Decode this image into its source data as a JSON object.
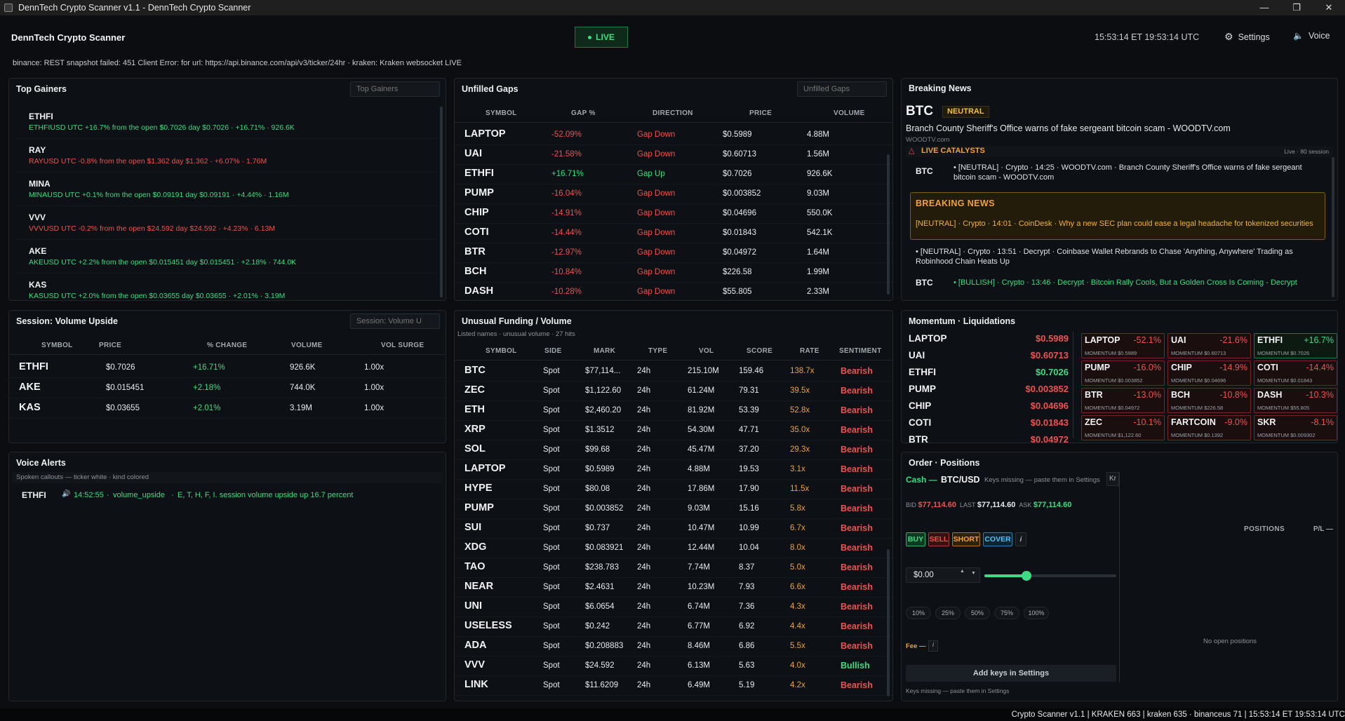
{
  "window": {
    "title": "DennTech Crypto Scanner v1.1 - DennTech Crypto Scanner"
  },
  "header": {
    "app_title": "DennTech Crypto Scanner",
    "live_label": "LIVE",
    "clock": "15:53:14 ET   19:53:14 UTC",
    "settings_label": "Settings",
    "voice_label": "Voice",
    "status_line": "binance: REST snapshot failed: 451 Client Error:  for url: https://api.binance.com/api/v3/ticker/24hr · kraken: Kraken websocket LIVE"
  },
  "top_gainers": {
    "title": "Top Gainers",
    "filter_placeholder": "Top Gainers",
    "items": [
      {
        "symbol": "ETHFI",
        "detail": "ETHFIUSD   UTC +16.7% from the open  $0.7026   day  $0.7026  ·  +16.71%  ·  926.6K",
        "color": "green"
      },
      {
        "symbol": "RAY",
        "detail": "RAYUSD   UTC -0.8% from the open  $1.362   day  $1.362  ·  +6.07%  ·  1.76M",
        "color": "red"
      },
      {
        "symbol": "MINA",
        "detail": "MINAUSD   UTC +0.1% from the open  $0.09191   day  $0.09191  ·  +4.44%  ·  1.16M",
        "color": "green"
      },
      {
        "symbol": "VVV",
        "detail": "VVVUSD   UTC -0.2% from the open  $24.592   day  $24.592  ·  +4.23%  ·  6.13M",
        "color": "red"
      },
      {
        "symbol": "AKE",
        "detail": "AKEUSD   UTC +2.2% from the open  $0.015451   day  $0.015451  ·  +2.18%  ·  744.0K",
        "color": "green"
      },
      {
        "symbol": "KAS",
        "detail": "KASUSD   UTC +2.0% from the open  $0.03655   day  $0.03655  ·  +2.01%  ·  3.19M",
        "color": "green"
      }
    ]
  },
  "session_volume": {
    "title": "Session: Volume Upside",
    "filter_placeholder": "Session: Volume U",
    "headers": [
      "SYMBOL",
      "PRICE",
      "% CHANGE",
      "VOLUME",
      "VOL SURGE"
    ],
    "rows": [
      {
        "symbol": "ETHFI",
        "price": "$0.7026",
        "change": "+16.71%",
        "volume": "926.6K",
        "surge": "1.00x"
      },
      {
        "symbol": "AKE",
        "price": "$0.015451",
        "change": "+2.18%",
        "volume": "744.0K",
        "surge": "1.00x"
      },
      {
        "symbol": "KAS",
        "price": "$0.03655",
        "change": "+2.01%",
        "volume": "3.19M",
        "surge": "1.00x"
      }
    ]
  },
  "voice_alerts": {
    "title": "Voice Alerts",
    "subtitle": "Spoken callouts — ticker white · kind colored",
    "items": [
      {
        "symbol": "ETHFI",
        "time": "14:52:55",
        "kind": "volume_upside",
        "text": "E, T, H, F, I. session volume upside up 16.7 percent"
      }
    ]
  },
  "unfilled_gaps": {
    "title": "Unfilled Gaps",
    "filter_placeholder": "Unfilled Gaps",
    "headers": [
      "SYMBOL",
      "GAP %",
      "DIRECTION",
      "PRICE",
      "VOLUME"
    ],
    "rows": [
      {
        "symbol": "LAPTOP",
        "gap": "-52.09%",
        "direction": "Gap Down",
        "price": "$0.5989",
        "volume": "4.88M",
        "up": false
      },
      {
        "symbol": "UAI",
        "gap": "-21.58%",
        "direction": "Gap Down",
        "price": "$0.60713",
        "volume": "1.56M",
        "up": false
      },
      {
        "symbol": "ETHFI",
        "gap": "+16.71%",
        "direction": "Gap Up",
        "price": "$0.7026",
        "volume": "926.6K",
        "up": true
      },
      {
        "symbol": "PUMP",
        "gap": "-16.04%",
        "direction": "Gap Down",
        "price": "$0.003852",
        "volume": "9.03M",
        "up": false
      },
      {
        "symbol": "CHIP",
        "gap": "-14.91%",
        "direction": "Gap Down",
        "price": "$0.04696",
        "volume": "550.0K",
        "up": false
      },
      {
        "symbol": "COTI",
        "gap": "-14.44%",
        "direction": "Gap Down",
        "price": "$0.01843",
        "volume": "542.1K",
        "up": false
      },
      {
        "symbol": "BTR",
        "gap": "-12.97%",
        "direction": "Gap Down",
        "price": "$0.04972",
        "volume": "1.64M",
        "up": false
      },
      {
        "symbol": "BCH",
        "gap": "-10.84%",
        "direction": "Gap Down",
        "price": "$226.58",
        "volume": "1.99M",
        "up": false
      },
      {
        "symbol": "DASH",
        "gap": "-10.28%",
        "direction": "Gap Down",
        "price": "$55.805",
        "volume": "2.33M",
        "up": false
      }
    ]
  },
  "unusual_funding": {
    "title": "Unusual Funding / Volume",
    "subtitle": "Listed names · unusual volume · 27 hits",
    "headers": [
      "SYMBOL",
      "SIDE",
      "MARK",
      "TYPE",
      "VOL",
      "SCORE",
      "RATE",
      "SENTIMENT"
    ],
    "rows": [
      {
        "symbol": "BTC",
        "side": "Spot",
        "mark": "$77,114...",
        "type": "24h",
        "vol": "215.10M",
        "score": "159.46",
        "rate": "138.7x",
        "sentiment": "Bearish"
      },
      {
        "symbol": "ZEC",
        "side": "Spot",
        "mark": "$1,122.60",
        "type": "24h",
        "vol": "61.24M",
        "score": "79.31",
        "rate": "39.5x",
        "sentiment": "Bearish"
      },
      {
        "symbol": "ETH",
        "side": "Spot",
        "mark": "$2,460.20",
        "type": "24h",
        "vol": "81.92M",
        "score": "53.39",
        "rate": "52.8x",
        "sentiment": "Bearish"
      },
      {
        "symbol": "XRP",
        "side": "Spot",
        "mark": "$1.3512",
        "type": "24h",
        "vol": "54.30M",
        "score": "47.71",
        "rate": "35.0x",
        "sentiment": "Bearish"
      },
      {
        "symbol": "SOL",
        "side": "Spot",
        "mark": "$99.68",
        "type": "24h",
        "vol": "45.47M",
        "score": "37.20",
        "rate": "29.3x",
        "sentiment": "Bearish"
      },
      {
        "symbol": "LAPTOP",
        "side": "Spot",
        "mark": "$0.5989",
        "type": "24h",
        "vol": "4.88M",
        "score": "19.53",
        "rate": "3.1x",
        "sentiment": "Bearish"
      },
      {
        "symbol": "HYPE",
        "side": "Spot",
        "mark": "$80.08",
        "type": "24h",
        "vol": "17.86M",
        "score": "17.90",
        "rate": "11.5x",
        "sentiment": "Bearish"
      },
      {
        "symbol": "PUMP",
        "side": "Spot",
        "mark": "$0.003852",
        "type": "24h",
        "vol": "9.03M",
        "score": "15.16",
        "rate": "5.8x",
        "sentiment": "Bearish"
      },
      {
        "symbol": "SUI",
        "side": "Spot",
        "mark": "$0.737",
        "type": "24h",
        "vol": "10.47M",
        "score": "10.99",
        "rate": "6.7x",
        "sentiment": "Bearish"
      },
      {
        "symbol": "XDG",
        "side": "Spot",
        "mark": "$0.083921",
        "type": "24h",
        "vol": "12.44M",
        "score": "10.04",
        "rate": "8.0x",
        "sentiment": "Bearish"
      },
      {
        "symbol": "TAO",
        "side": "Spot",
        "mark": "$238.783",
        "type": "24h",
        "vol": "7.74M",
        "score": "8.37",
        "rate": "5.0x",
        "sentiment": "Bearish"
      },
      {
        "symbol": "NEAR",
        "side": "Spot",
        "mark": "$2.4631",
        "type": "24h",
        "vol": "10.23M",
        "score": "7.93",
        "rate": "6.6x",
        "sentiment": "Bearish"
      },
      {
        "symbol": "UNI",
        "side": "Spot",
        "mark": "$6.0654",
        "type": "24h",
        "vol": "6.74M",
        "score": "7.36",
        "rate": "4.3x",
        "sentiment": "Bearish"
      },
      {
        "symbol": "USELESS",
        "side": "Spot",
        "mark": "$0.242",
        "type": "24h",
        "vol": "6.77M",
        "score": "6.92",
        "rate": "4.4x",
        "sentiment": "Bearish"
      },
      {
        "symbol": "ADA",
        "side": "Spot",
        "mark": "$0.208883",
        "type": "24h",
        "vol": "8.46M",
        "score": "6.86",
        "rate": "5.5x",
        "sentiment": "Bearish"
      },
      {
        "symbol": "VVV",
        "side": "Spot",
        "mark": "$24.592",
        "type": "24h",
        "vol": "6.13M",
        "score": "5.63",
        "rate": "4.0x",
        "sentiment": "Bullish"
      },
      {
        "symbol": "LINK",
        "side": "Spot",
        "mark": "$11.6209",
        "type": "24h",
        "vol": "6.49M",
        "score": "5.19",
        "rate": "4.2x",
        "sentiment": "Bearish"
      }
    ]
  },
  "breaking_news": {
    "title": "Breaking News",
    "symbol": "BTC",
    "badge": "NEUTRAL",
    "headline": "Branch County Sheriff's Office warns of fake sergeant bitcoin scam - WOODTV.com",
    "source": "WOODTV.com",
    "catalysts_label": "LIVE CATALYSTS",
    "catalysts_meta": "Live · 80 session",
    "items": [
      {
        "symbol": "BTC",
        "text": "•  [NEUTRAL] · Crypto · 14:25 · WOODTV.com  ·  Branch County Sheriff's Office warns of fake sergeant bitcoin scam - WOODTV.com"
      },
      {
        "symbol": "",
        "text": "•  [NEUTRAL] · Crypto · 13:51 · Decrypt  ·  Coinbase Wallet Rebrands to Chase 'Anything, Anywhere' Trading as Robinhood Chain Heats Up"
      },
      {
        "symbol": "BTC",
        "text": "•  [BULLISH] · Crypto · 13:46 · Decrypt  ·  Bitcoin Rally Cools, But a Golden Cross Is Coming - Decrypt"
      }
    ],
    "breaking_box": {
      "label": "BREAKING NEWS",
      "text": "[NEUTRAL] · Crypto · 14:01 · CoinDesk  ·  Why a new SEC plan could ease a legal headache for tokenized securities"
    }
  },
  "momentum": {
    "title": "Momentum · Liquidations",
    "list": [
      {
        "symbol": "LAPTOP",
        "price": "$0.5989",
        "up": false
      },
      {
        "symbol": "UAI",
        "price": "$0.60713",
        "up": false
      },
      {
        "symbol": "ETHFI",
        "price": "$0.7026",
        "up": true
      },
      {
        "symbol": "PUMP",
        "price": "$0.003852",
        "up": false
      },
      {
        "symbol": "CHIP",
        "price": "$0.04696",
        "up": false
      },
      {
        "symbol": "COTI",
        "price": "$0.01843",
        "up": false
      },
      {
        "symbol": "BTR",
        "price": "$0.04972",
        "up": false
      }
    ],
    "tiles": [
      {
        "symbol": "LAPTOP",
        "pct": "-52.1%",
        "mom": "MOMENTUM  $0.5989",
        "up": false
      },
      {
        "symbol": "UAI",
        "pct": "-21.6%",
        "mom": "MOMENTUM  $0.60713",
        "up": false
      },
      {
        "symbol": "ETHFI",
        "pct": "+16.7%",
        "mom": "MOMENTUM  $0.7026",
        "up": true
      },
      {
        "symbol": "PUMP",
        "pct": "-16.0%",
        "mom": "MOMENTUM  $0.003852",
        "up": false
      },
      {
        "symbol": "CHIP",
        "pct": "-14.9%",
        "mom": "MOMENTUM  $0.04696",
        "up": false
      },
      {
        "symbol": "COTI",
        "pct": "-14.4%",
        "mom": "MOMENTUM  $0.01843",
        "up": false
      },
      {
        "symbol": "BTR",
        "pct": "-13.0%",
        "mom": "MOMENTUM  $0.04972",
        "up": false
      },
      {
        "symbol": "BCH",
        "pct": "-10.8%",
        "mom": "MOMENTUM  $226.58",
        "up": false
      },
      {
        "symbol": "DASH",
        "pct": "-10.3%",
        "mom": "MOMENTUM  $55.805",
        "up": false
      },
      {
        "symbol": "ZEC",
        "pct": "-10.1%",
        "mom": "MOMENTUM  $1,122.60",
        "up": false
      },
      {
        "symbol": "FARTCOIN",
        "pct": "-9.0%",
        "mom": "MOMENTUM  $0.1392",
        "up": false
      },
      {
        "symbol": "SKR",
        "pct": "-8.1%",
        "mom": "MOMENTUM  $0.009302",
        "up": false
      }
    ]
  },
  "orders": {
    "title": "Order · Positions",
    "cash_label": "Cash —",
    "pair": "BTC/USD",
    "keys_note": "Keys missing — paste them in Settings",
    "exchange_chip": "Kr",
    "bid_label": "BID",
    "bid": "$77,114.60",
    "last_label": "LAST",
    "last": "$77,114.60",
    "ask_label": "ASK",
    "ask": "$77,114.60",
    "buy": "BUY",
    "sell": "SELL",
    "short": "SHORT",
    "cover": "COVER",
    "info": "i",
    "amount": "$0.00",
    "amount_slider_fraction": 0.32,
    "percent_chips": [
      "10%",
      "25%",
      "50%",
      "75%",
      "100%"
    ],
    "fee_label": "Fee —",
    "add_keys": "Add keys in Settings",
    "footer_note": "Keys missing — paste them in Settings",
    "positions_label": "POSITIONS",
    "pl_label": "P/L —",
    "no_positions": "No open positions"
  },
  "footer": {
    "text": "Crypto Scanner v1.1 | KRAKEN 663 | kraken 635 · binanceus 71 | 15:53:14 ET   19:53:14 UTC"
  },
  "colors": {
    "up": "#3ddc84",
    "down": "#f0524f",
    "accent": "#f0a23b",
    "bg": "#0b0d10"
  }
}
